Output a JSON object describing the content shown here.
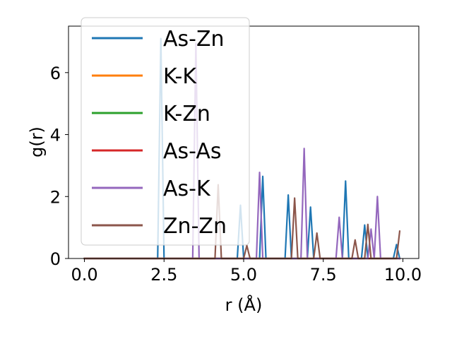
{
  "chart_data": {
    "type": "line",
    "xlabel": "r (Å)",
    "ylabel": "g(r)",
    "xlim": [
      -0.5,
      10.5
    ],
    "ylim": [
      0,
      7.5
    ],
    "x_ticks": [
      0.0,
      2.5,
      5.0,
      7.5,
      10.0
    ],
    "x_tick_labels": [
      "0.0",
      "2.5",
      "5.0",
      "7.5",
      "10.0"
    ],
    "y_ticks": [
      0,
      2,
      4,
      6
    ],
    "y_tick_labels": [
      "0",
      "2",
      "4",
      "6"
    ],
    "grid": false,
    "legend_position": "upper-left",
    "series": [
      {
        "name": "As-Zn",
        "color": "#1f77b4",
        "points": [
          [
            0.0,
            0
          ],
          [
            2.3,
            0
          ],
          [
            2.4,
            7.1
          ],
          [
            2.5,
            0
          ],
          [
            4.8,
            0
          ],
          [
            4.9,
            1.72
          ],
          [
            5.0,
            0
          ],
          [
            5.5,
            0
          ],
          [
            5.6,
            2.65
          ],
          [
            5.7,
            0
          ],
          [
            6.3,
            0
          ],
          [
            6.4,
            2.05
          ],
          [
            6.5,
            0
          ],
          [
            7.0,
            0
          ],
          [
            7.1,
            1.66
          ],
          [
            7.2,
            0
          ],
          [
            8.1,
            0
          ],
          [
            8.2,
            2.5
          ],
          [
            8.3,
            0
          ],
          [
            8.7,
            0
          ],
          [
            8.8,
            1.08
          ],
          [
            8.9,
            0
          ],
          [
            9.7,
            0
          ],
          [
            9.8,
            0.45
          ],
          [
            9.9,
            0
          ]
        ]
      },
      {
        "name": "K-K",
        "color": "#ff7f0e",
        "points": [
          [
            0.0,
            0
          ],
          [
            9.9,
            0
          ]
        ]
      },
      {
        "name": "K-Zn",
        "color": "#2ca02c",
        "points": [
          [
            0.0,
            0
          ],
          [
            9.9,
            0
          ]
        ]
      },
      {
        "name": "As-As",
        "color": "#d62728",
        "points": [
          [
            0.0,
            0
          ],
          [
            9.9,
            0
          ]
        ]
      },
      {
        "name": "As-K",
        "color": "#9467bd",
        "points": [
          [
            0.0,
            0
          ],
          [
            3.4,
            0
          ],
          [
            3.5,
            6.95
          ],
          [
            3.6,
            0
          ],
          [
            5.4,
            0
          ],
          [
            5.5,
            2.78
          ],
          [
            5.6,
            0
          ],
          [
            6.8,
            0
          ],
          [
            6.9,
            3.55
          ],
          [
            7.0,
            0
          ],
          [
            7.9,
            0
          ],
          [
            8.0,
            1.33
          ],
          [
            8.1,
            0
          ],
          [
            8.9,
            0
          ],
          [
            9.0,
            0.95
          ],
          [
            9.1,
            0
          ],
          [
            9.2,
            2.0
          ],
          [
            9.3,
            0
          ],
          [
            9.9,
            0
          ]
        ]
      },
      {
        "name": "Zn-Zn",
        "color": "#8c564b",
        "points": [
          [
            0.0,
            0
          ],
          [
            4.1,
            0
          ],
          [
            4.2,
            2.38
          ],
          [
            4.3,
            0
          ],
          [
            5.0,
            0
          ],
          [
            5.1,
            0.42
          ],
          [
            5.2,
            0
          ],
          [
            6.5,
            0
          ],
          [
            6.6,
            1.95
          ],
          [
            6.7,
            0
          ],
          [
            7.2,
            0
          ],
          [
            7.3,
            0.82
          ],
          [
            7.4,
            0
          ],
          [
            8.4,
            0
          ],
          [
            8.5,
            0.6
          ],
          [
            8.6,
            0
          ],
          [
            8.8,
            0
          ],
          [
            8.9,
            1.1
          ],
          [
            9.0,
            0
          ],
          [
            9.8,
            0
          ],
          [
            9.9,
            0.88
          ]
        ]
      }
    ]
  }
}
